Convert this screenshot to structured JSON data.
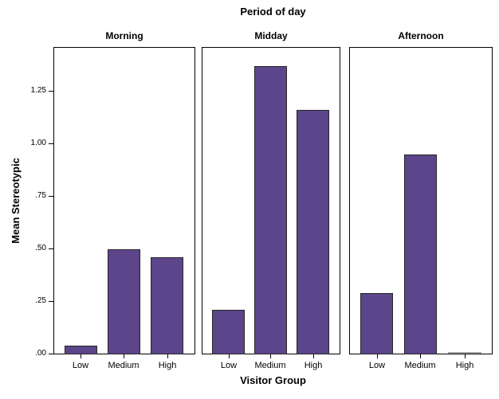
{
  "figure": {
    "title": "Period of day",
    "x_axis_title": "Visitor Group",
    "y_axis_title": "Mean Stereotypic"
  },
  "colors": {
    "bar_fill": "#5c458a",
    "bar_border": "#262626",
    "frame": "#000000",
    "zero_bar": "#a6a6a6",
    "text": "#000000"
  },
  "chart_data": {
    "type": "bar",
    "title": "Period of day",
    "xlabel": "Visitor Group",
    "ylabel": "Mean Stereotypic",
    "facet_label": "Period of day",
    "categories": [
      "Low",
      "Medium",
      "High"
    ],
    "panels": [
      {
        "label": "Morning",
        "values": [
          0.04,
          0.5,
          0.46
        ]
      },
      {
        "label": "Midday",
        "values": [
          0.21,
          1.37,
          1.16
        ]
      },
      {
        "label": "Afternoon",
        "values": [
          0.29,
          0.95,
          0.0
        ]
      }
    ],
    "ylim": [
      0,
      1.46
    ],
    "yticks": [
      {
        "label": ".00",
        "value": 0.0
      },
      {
        "label": ".25",
        "value": 0.25
      },
      {
        "label": ".50",
        "value": 0.5
      },
      {
        "label": ".75",
        "value": 0.75
      },
      {
        "label": "1.00",
        "value": 1.0
      },
      {
        "label": "1.25",
        "value": 1.25
      }
    ],
    "grid": false
  }
}
